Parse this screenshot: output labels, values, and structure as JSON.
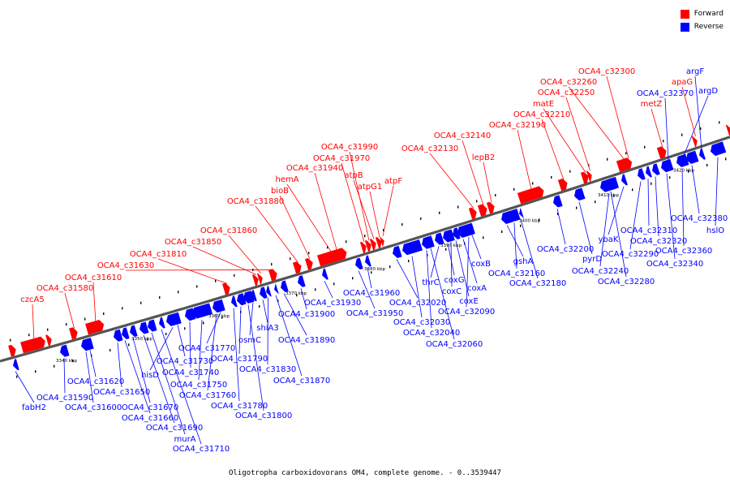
{
  "legend": [
    {
      "label": "Forward",
      "color": "#ff0000"
    },
    {
      "label": "Reverse",
      "color": "#0000ff"
    }
  ],
  "caption": "Oligotropha carboxidovorans OM4, complete genome. - 0..3539447",
  "colors": {
    "forward": "#ff0000",
    "reverse": "#0000ff",
    "axis": "#555555"
  },
  "ticks": [
    "3340 kbp",
    "3350 kbp",
    "3360 kbp",
    "3370 kbp",
    "3380 kbp",
    "3390 kbp",
    "3400 kbp",
    "3410 kbp",
    "3420 kbp"
  ],
  "forward_labels": [
    "czcA5",
    "OCA4_c31580",
    "OCA4_c31610",
    "OCA4_c31630",
    "OCA4_c31810",
    "OCA4_c31850",
    "OCA4_c31860",
    "OCA4_c31880",
    "bioB",
    "hemA",
    "OCA4_c31940",
    "OCA4_c31970",
    "OCA4_c31990",
    "atpB",
    "atpG1",
    "atpF",
    "OCA4_c32130",
    "OCA4_c32140",
    "lepB2",
    "OCA4_c32190",
    "OCA4_c32210",
    "matE",
    "OCA4_c32250",
    "OCA4_c32260",
    "OCA4_c32300",
    "metZ",
    "apaG"
  ],
  "reverse_labels": [
    "fabH2",
    "OCA4_c31590",
    "OCA4_c31600",
    "OCA4_c31620",
    "OCA4_c31650",
    "OCA4_c31660",
    "OCA4_c31670",
    "OCA4_c31690",
    "murA",
    "OCA4_c31710",
    "hisD",
    "OCA4_c31730",
    "OCA4_c31740",
    "OCA4_c31750",
    "OCA4_c31760",
    "OCA4_c31770",
    "OCA4_c31780",
    "OCA4_c31790",
    "OCA4_c31800",
    "osmC",
    "shiA3",
    "OCA4_c31830",
    "OCA4_c31870",
    "OCA4_c31890",
    "OCA4_c31900",
    "OCA4_c31930",
    "OCA4_c31950",
    "OCA4_c31960",
    "OCA4_c32020",
    "OCA4_c32030",
    "OCA4_c32040",
    "OCA4_c32060",
    "thrC",
    "coxG",
    "coxC",
    "coxE",
    "coxA",
    "OCA4_c32090",
    "coxB",
    "gshA",
    "OCA4_c32160",
    "OCA4_c32180",
    "OCA4_c32200",
    "pyrD",
    "OCA4_c32240",
    "OCA4_c32280",
    "ybaK",
    "OCA4_c32290",
    "OCA4_c32310",
    "OCA4_c32320",
    "OCA4_c32340",
    "OCA4_c32360",
    "OCA4_c32380",
    "hslO",
    "OCA4_c32370",
    "argD",
    "argF"
  ]
}
